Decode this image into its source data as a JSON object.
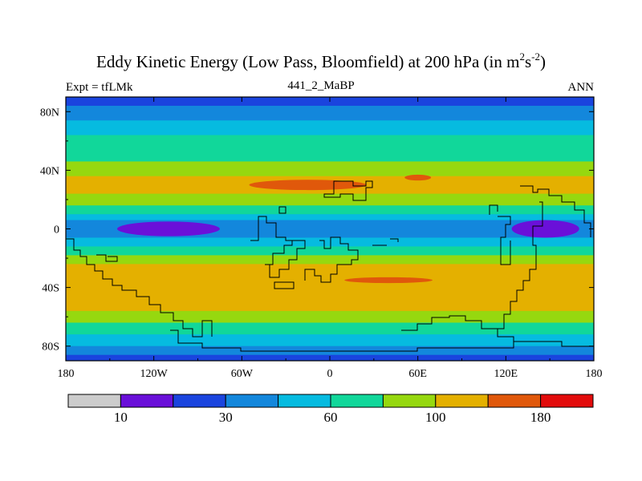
{
  "title_main": "Eddy Kinetic Energy (Low Pass, Bloomfield) at 200 hPa (in m",
  "title_sup1": "2",
  "title_s": "s",
  "title_sup2": "-2",
  "title_close": ")",
  "left_label": "Expt = tfLMk",
  "center_label": "441_2_MaBP",
  "right_label": "ANN",
  "chart_data": {
    "type": "heatmap",
    "title": "Eddy Kinetic Energy (Low Pass, Bloomfield) at 200 hPa (in m^2 s^-2)",
    "subtitle": "441_2_MaBP",
    "experiment": "Expt = tfLMk",
    "season": "ANN",
    "xlim": [
      -180,
      180
    ],
    "ylim": [
      -90,
      90
    ],
    "x_ticks": [
      {
        "value": -180,
        "label": "180"
      },
      {
        "value": -120,
        "label": "120W"
      },
      {
        "value": -60,
        "label": "60W"
      },
      {
        "value": 0,
        "label": "0"
      },
      {
        "value": 60,
        "label": "60E"
      },
      {
        "value": 120,
        "label": "120E"
      },
      {
        "value": 180,
        "label": "180"
      }
    ],
    "y_ticks": [
      {
        "value": 80,
        "label": "80N"
      },
      {
        "value": 40,
        "label": "40N"
      },
      {
        "value": 0,
        "label": "0"
      },
      {
        "value": -40,
        "label": "40S"
      },
      {
        "value": -80,
        "label": "80S"
      }
    ],
    "colorbar": {
      "colors": [
        "#cccccc",
        "#6a10d9",
        "#1a44de",
        "#1387dc",
        "#06bbe0",
        "#11d79a",
        "#96d80f",
        "#e4b000",
        "#e0580b",
        "#e20c0c"
      ],
      "labels": [
        {
          "boundary": 1,
          "label": "10"
        },
        {
          "boundary": 3,
          "label": "30"
        },
        {
          "boundary": 5,
          "label": "60"
        },
        {
          "boundary": 7,
          "label": "100"
        },
        {
          "boundary": 9,
          "label": "180"
        }
      ]
    },
    "lat_bands": [
      {
        "lat_top": 90,
        "lat_bottom": 84,
        "level": 2
      },
      {
        "lat_top": 84,
        "lat_bottom": 74,
        "level": 3
      },
      {
        "lat_top": 74,
        "lat_bottom": 64,
        "level": 4
      },
      {
        "lat_top": 64,
        "lat_bottom": 46,
        "level": 5
      },
      {
        "lat_top": 46,
        "lat_bottom": 36,
        "level": 6
      },
      {
        "lat_top": 36,
        "lat_bottom": 24,
        "level": 7
      },
      {
        "lat_top": 24,
        "lat_bottom": 16,
        "level": 6
      },
      {
        "lat_top": 16,
        "lat_bottom": 10,
        "level": 5
      },
      {
        "lat_top": 10,
        "lat_bottom": 6,
        "level": 4
      },
      {
        "lat_top": 6,
        "lat_bottom": -6,
        "level": 3
      },
      {
        "lat_top": -6,
        "lat_bottom": -12,
        "level": 4
      },
      {
        "lat_top": -12,
        "lat_bottom": -18,
        "level": 5
      },
      {
        "lat_top": -18,
        "lat_bottom": -24,
        "level": 6
      },
      {
        "lat_top": -24,
        "lat_bottom": -56,
        "level": 7
      },
      {
        "lat_top": -56,
        "lat_bottom": -64,
        "level": 6
      },
      {
        "lat_top": -64,
        "lat_bottom": -72,
        "level": 5
      },
      {
        "lat_top": -72,
        "lat_bottom": -80,
        "level": 4
      },
      {
        "lat_top": -80,
        "lat_bottom": -86,
        "level": 3
      },
      {
        "lat_top": -86,
        "lat_bottom": -90,
        "level": 2
      }
    ],
    "features": [
      {
        "name": "nh-jet-max-atlantic",
        "level": 8,
        "lon": -15,
        "lat": 30,
        "rx": 40,
        "ry": 3.5
      },
      {
        "name": "nh-jet-max-asia",
        "level": 8,
        "lon": 60,
        "lat": 35,
        "rx": 9,
        "ry": 2
      },
      {
        "name": "sh-jet-max",
        "level": 8,
        "lon": 40,
        "lat": -35,
        "rx": 30,
        "ry": 2
      },
      {
        "name": "pacific-minimum-west",
        "level": 1,
        "lon": -110,
        "lat": 0,
        "rx": 35,
        "ry": 5
      },
      {
        "name": "pacific-minimum-east",
        "level": 1,
        "lon": 147,
        "lat": 0,
        "rx": 23,
        "ry": 6
      }
    ]
  }
}
